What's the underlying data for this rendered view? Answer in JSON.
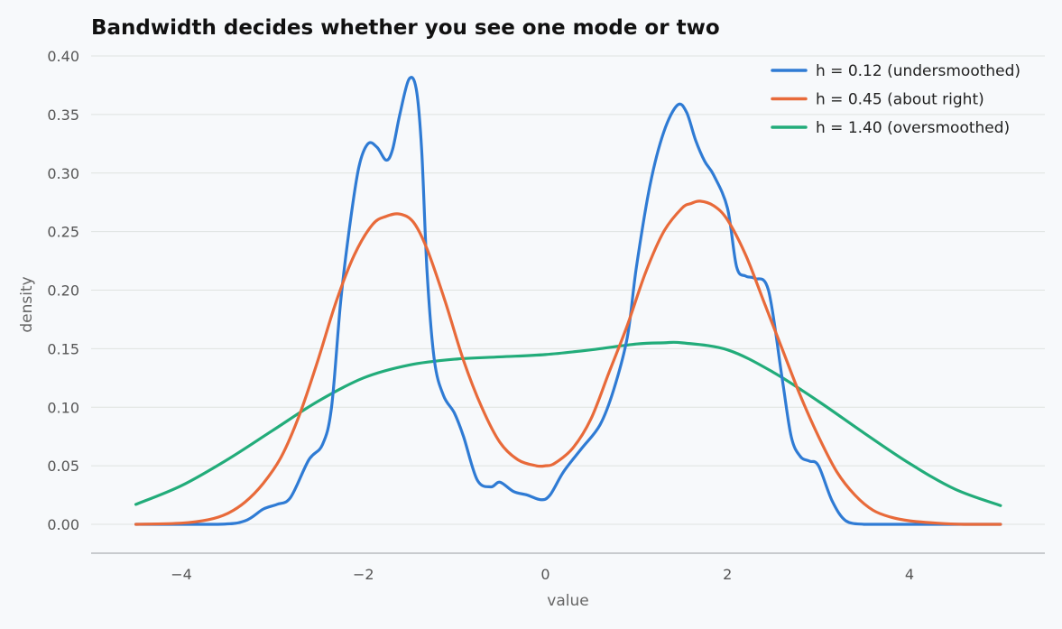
{
  "chart_data": {
    "type": "line",
    "title": "Bandwidth decides whether you see one mode or two",
    "xlabel": "value",
    "ylabel": "density",
    "xlim": [
      -4.5,
      5.0
    ],
    "ylim": [
      -0.025,
      0.4
    ],
    "xticks": [
      "−4",
      "−2",
      "0",
      "2",
      "4"
    ],
    "xtick_values": [
      -4,
      -2,
      0,
      2,
      4
    ],
    "yticks": [
      "0.00",
      "0.05",
      "0.10",
      "0.15",
      "0.20",
      "0.25",
      "0.30",
      "0.35",
      "0.40"
    ],
    "ytick_values": [
      0,
      0.05,
      0.1,
      0.15,
      0.2,
      0.25,
      0.3,
      0.35,
      0.4
    ],
    "grid": "horizontal",
    "legend_position": "top-right",
    "series": [
      {
        "name": "h = 0.12 (undersmoothed)",
        "color": "#2f7bd4",
        "x": [
          -4.5,
          -3.6,
          -3.3,
          -3.1,
          -2.95,
          -2.8,
          -2.6,
          -2.45,
          -2.35,
          -2.25,
          -2.15,
          -2.05,
          -1.95,
          -1.85,
          -1.75,
          -1.68,
          -1.6,
          -1.5,
          -1.42,
          -1.36,
          -1.3,
          -1.22,
          -1.12,
          -1.0,
          -0.9,
          -0.75,
          -0.6,
          -0.5,
          -0.35,
          -0.2,
          -0.05,
          0.05,
          0.2,
          0.4,
          0.6,
          0.75,
          0.9,
          1.0,
          1.15,
          1.3,
          1.45,
          1.55,
          1.65,
          1.75,
          1.85,
          2.0,
          2.1,
          2.2,
          2.3,
          2.45,
          2.6,
          2.7,
          2.8,
          2.9,
          3.0,
          3.15,
          3.3,
          3.5,
          3.7,
          4.0,
          5.0
        ],
        "y": [
          0.0,
          0.0,
          0.003,
          0.013,
          0.017,
          0.023,
          0.055,
          0.068,
          0.1,
          0.19,
          0.255,
          0.305,
          0.325,
          0.322,
          0.311,
          0.32,
          0.35,
          0.38,
          0.372,
          0.32,
          0.215,
          0.14,
          0.11,
          0.095,
          0.075,
          0.038,
          0.032,
          0.036,
          0.028,
          0.025,
          0.021,
          0.025,
          0.045,
          0.065,
          0.085,
          0.115,
          0.16,
          0.22,
          0.29,
          0.335,
          0.358,
          0.352,
          0.328,
          0.31,
          0.298,
          0.27,
          0.22,
          0.212,
          0.21,
          0.2,
          0.125,
          0.075,
          0.058,
          0.054,
          0.05,
          0.02,
          0.003,
          0.0,
          0.0,
          0.0,
          0.0
        ]
      },
      {
        "name": "h = 0.45 (about right)",
        "color": "#e86a3a",
        "x": [
          -4.5,
          -4.0,
          -3.7,
          -3.5,
          -3.3,
          -3.1,
          -2.9,
          -2.7,
          -2.5,
          -2.3,
          -2.1,
          -1.9,
          -1.75,
          -1.6,
          -1.45,
          -1.3,
          -1.1,
          -0.9,
          -0.7,
          -0.5,
          -0.3,
          -0.1,
          0.0,
          0.1,
          0.3,
          0.5,
          0.7,
          0.9,
          1.1,
          1.3,
          1.5,
          1.6,
          1.7,
          1.85,
          2.0,
          2.2,
          2.4,
          2.6,
          2.8,
          3.0,
          3.2,
          3.4,
          3.6,
          3.8,
          4.0,
          4.3,
          4.6,
          5.0
        ],
        "y": [
          0.0,
          0.001,
          0.004,
          0.009,
          0.019,
          0.035,
          0.058,
          0.094,
          0.14,
          0.19,
          0.23,
          0.256,
          0.263,
          0.265,
          0.258,
          0.235,
          0.19,
          0.14,
          0.1,
          0.07,
          0.055,
          0.05,
          0.05,
          0.052,
          0.065,
          0.09,
          0.13,
          0.17,
          0.215,
          0.25,
          0.27,
          0.274,
          0.276,
          0.272,
          0.26,
          0.23,
          0.19,
          0.15,
          0.11,
          0.075,
          0.045,
          0.025,
          0.012,
          0.006,
          0.003,
          0.001,
          0.0,
          0.0
        ]
      },
      {
        "name": "h = 1.40 (oversmoothed)",
        "color": "#22ac7a",
        "x": [
          -4.5,
          -4.0,
          -3.5,
          -3.0,
          -2.5,
          -2.0,
          -1.5,
          -1.0,
          -0.5,
          0.0,
          0.5,
          1.0,
          1.3,
          1.5,
          2.0,
          2.5,
          3.0,
          3.5,
          4.0,
          4.5,
          5.0
        ],
        "y": [
          0.017,
          0.033,
          0.055,
          0.08,
          0.105,
          0.125,
          0.136,
          0.141,
          0.143,
          0.145,
          0.149,
          0.154,
          0.155,
          0.155,
          0.149,
          0.13,
          0.105,
          0.078,
          0.052,
          0.03,
          0.016
        ]
      }
    ]
  }
}
